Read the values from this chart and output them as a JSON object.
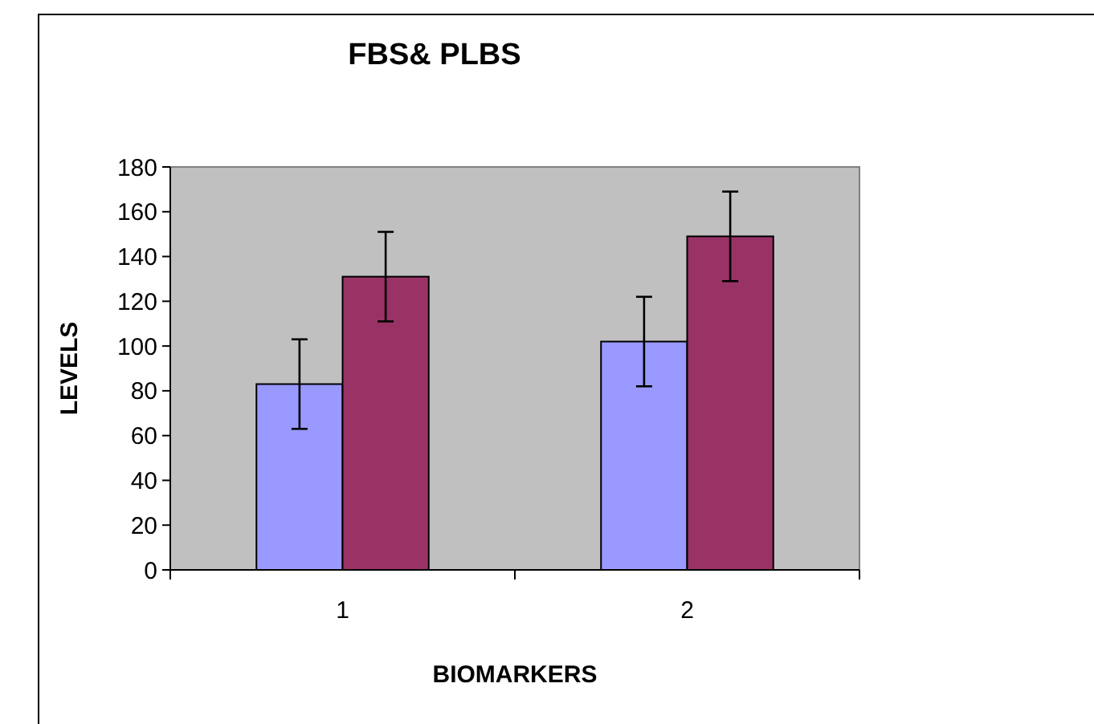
{
  "chart_data": {
    "type": "bar",
    "title": "FBS& PLBS",
    "xlabel": "BIOMARKERS",
    "ylabel": "LEVELS",
    "categories": [
      "1",
      "2"
    ],
    "series": [
      {
        "color": "#9999ff",
        "values": [
          83,
          102
        ],
        "errors": [
          20,
          20
        ]
      },
      {
        "color": "#993366",
        "values": [
          131,
          149
        ],
        "errors": [
          20,
          20
        ]
      }
    ],
    "ylim": [
      0,
      180
    ],
    "yticks": [
      0,
      20,
      40,
      60,
      80,
      100,
      120,
      140,
      160,
      180
    ],
    "grid": false
  }
}
